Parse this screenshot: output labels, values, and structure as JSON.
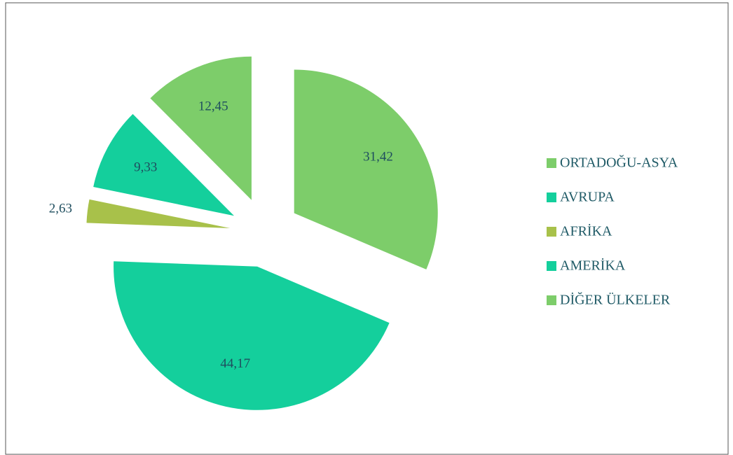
{
  "chart_data": {
    "type": "pie",
    "categories": [
      "ORTADOĞU-ASYA",
      "AVRUPA",
      "AFRİKA",
      "AMERİKA",
      "DİĞER ÜLKELER"
    ],
    "values": [
      31.42,
      44.17,
      2.63,
      9.33,
      12.45
    ],
    "value_labels": [
      "31,42",
      "44,17",
      "2,63",
      "9,33",
      "12,45"
    ],
    "colors": [
      "#7dcd6a",
      "#14cf9c",
      "#a8c14a",
      "#14cf9c",
      "#7dcd6a"
    ],
    "legend": "right"
  }
}
